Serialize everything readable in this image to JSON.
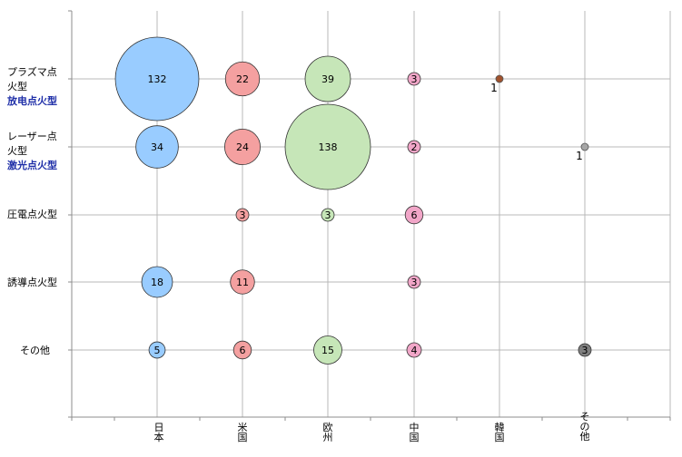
{
  "chart_data": {
    "type": "scatter",
    "categories_x": [
      "日本",
      "米国",
      "欧州",
      "中国",
      "韓国",
      "その他"
    ],
    "categories_y": [
      {
        "label": "プラズマ点火型",
        "sub": "放电点火型"
      },
      {
        "label": "レーザー点火型",
        "sub": "激光点火型"
      },
      {
        "label": "圧電点火型",
        "sub": ""
      },
      {
        "label": "誘導点火型",
        "sub": ""
      },
      {
        "label": "その他",
        "sub": ""
      }
    ],
    "series": [
      {
        "values": [
          132,
          22,
          39,
          3,
          1,
          null
        ],
        "colors": [
          "#99ccff",
          "#f4a0a0",
          "#c6e6b8",
          "#f1a6c8",
          "#a0522d",
          null
        ]
      },
      {
        "values": [
          34,
          24,
          138,
          2,
          null,
          1
        ],
        "colors": [
          "#99ccff",
          "#f4a0a0",
          "#c6e6b8",
          "#f1a6c8",
          null,
          "#a6a6a6"
        ]
      },
      {
        "values": [
          null,
          3,
          3,
          6,
          null,
          null
        ],
        "colors": [
          null,
          "#f4a0a0",
          "#c6e6b8",
          "#f1a6c8",
          null,
          null
        ]
      },
      {
        "values": [
          18,
          11,
          null,
          3,
          null,
          null
        ],
        "colors": [
          "#99ccff",
          "#f4a0a0",
          null,
          "#f1a6c8",
          null,
          null
        ]
      },
      {
        "values": [
          5,
          6,
          15,
          4,
          null,
          3
        ],
        "colors": [
          "#99ccff",
          "#f4a0a0",
          "#c6e6b8",
          "#f1a6c8",
          null,
          "#7f7f7f"
        ]
      }
    ],
    "grid": true,
    "legend": "none",
    "title": "",
    "xlabel": "",
    "ylabel": ""
  }
}
